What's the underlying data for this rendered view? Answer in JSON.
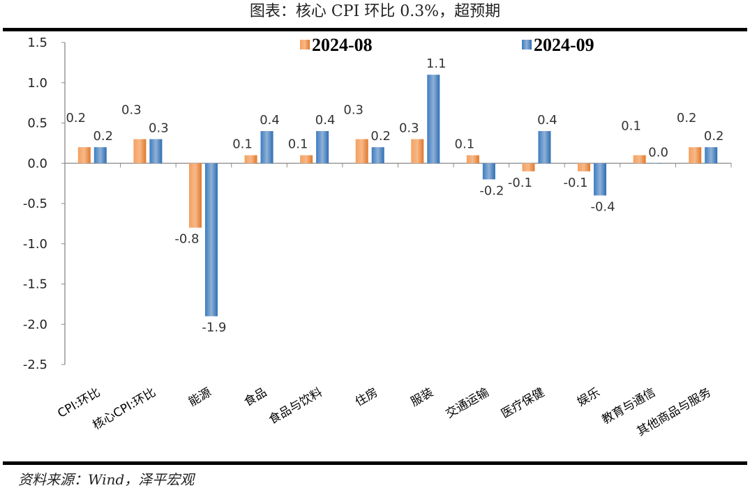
{
  "title": "图表：核心 CPI 环比 0.3%，超预期",
  "source": "资料来源：Wind，泽平宏观",
  "chart_data": {
    "type": "bar",
    "categories": [
      "CPI:环比",
      "核心CPI:环比",
      "能源",
      "食品",
      "食品与饮料",
      "住房",
      "服装",
      "交通运输",
      "医疗保健",
      "娱乐",
      "教育与通信",
      "其他商品与服务"
    ],
    "series": [
      {
        "name": "2024-08",
        "color": "#ED7D31",
        "values": [
          0.2,
          0.3,
          -0.8,
          0.1,
          0.1,
          0.3,
          0.3,
          0.1,
          -0.1,
          -0.1,
          0.1,
          0.2
        ]
      },
      {
        "name": "2024-09",
        "color": "#4A86C5",
        "values": [
          0.2,
          0.3,
          -1.9,
          0.4,
          0.4,
          0.2,
          1.1,
          -0.2,
          0.4,
          -0.4,
          0.0,
          0.2
        ]
      }
    ],
    "negative_label_color_2024_08": "#E00000",
    "ylim": [
      -2.5,
      1.5
    ],
    "yticks": [
      "1.5",
      "1.0",
      "0.5",
      "0.0",
      "-0.5",
      "-1.0",
      "-1.5",
      "-2.0",
      "-2.5"
    ],
    "grid": false,
    "legend": "top"
  }
}
